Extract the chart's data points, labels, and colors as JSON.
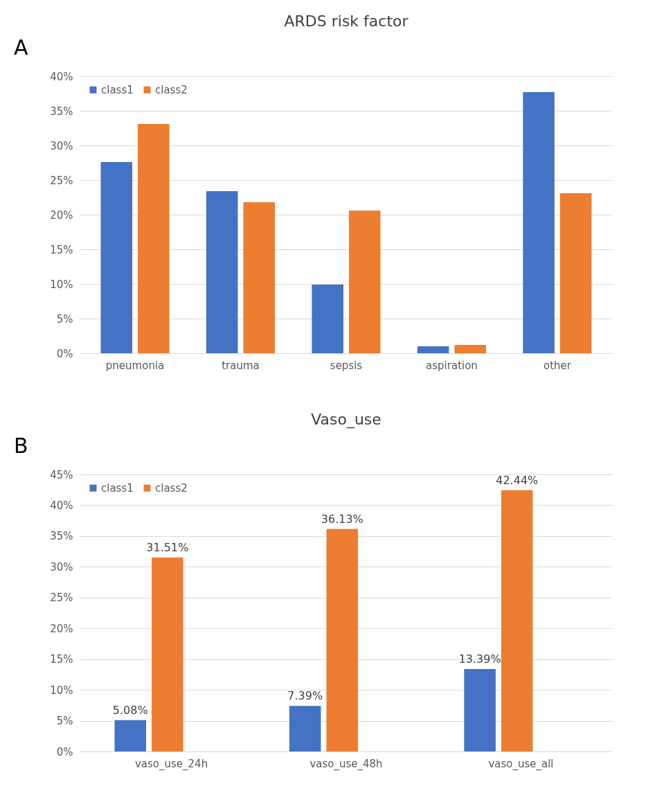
{
  "chart_data": [
    {
      "type": "bar",
      "title": "ARDS risk factor",
      "annotations": [
        "A"
      ],
      "categories": [
        "pneumonia",
        "trauma",
        "sepsis",
        "aspiration",
        "other"
      ],
      "series": [
        {
          "name": "class1",
          "color": "#4472c4",
          "values": [
            27.6,
            23.4,
            9.9,
            1.0,
            37.7
          ]
        },
        {
          "name": "class2",
          "color": "#ed7d31",
          "values": [
            33.1,
            21.8,
            20.6,
            1.2,
            23.1
          ]
        }
      ],
      "ylim": [
        0,
        40
      ],
      "yticks": [
        {
          "value": 0,
          "label": "0%"
        },
        {
          "value": 5,
          "label": "5%"
        },
        {
          "value": 10,
          "label": "10%"
        },
        {
          "value": 15,
          "label": "15%"
        },
        {
          "value": 20,
          "label": "20%"
        },
        {
          "value": 25,
          "label": "25%"
        },
        {
          "value": 30,
          "label": "30%"
        },
        {
          "value": 35,
          "label": "35%"
        },
        {
          "value": 40,
          "label": "40%"
        }
      ],
      "grid": "y",
      "legend": "top left"
    },
    {
      "type": "bar",
      "title": "Vaso_use",
      "annotations": [
        "B"
      ],
      "categories": [
        "vaso_use_24h",
        "vaso_use_48h",
        "vaso_use_all"
      ],
      "series": [
        {
          "name": "class1",
          "color": "#4472c4",
          "values": [
            5.08,
            7.39,
            13.39
          ],
          "value_labels": [
            "5.08%",
            "7.39%",
            "13.39%"
          ]
        },
        {
          "name": "class2",
          "color": "#ed7d31",
          "values": [
            31.51,
            36.13,
            42.44
          ],
          "value_labels": [
            "31.51%",
            "36.13%",
            "42.44%"
          ]
        }
      ],
      "ylim": [
        0,
        45
      ],
      "yticks": [
        {
          "value": 0,
          "label": "0%"
        },
        {
          "value": 5,
          "label": "5%"
        },
        {
          "value": 10,
          "label": "10%"
        },
        {
          "value": 15,
          "label": "15%"
        },
        {
          "value": 20,
          "label": "20%"
        },
        {
          "value": 25,
          "label": "25%"
        },
        {
          "value": 30,
          "label": "30%"
        },
        {
          "value": 35,
          "label": "35%"
        },
        {
          "value": 40,
          "label": "40%"
        },
        {
          "value": 45,
          "label": "45%"
        }
      ],
      "grid": "y",
      "legend": "top left"
    }
  ]
}
